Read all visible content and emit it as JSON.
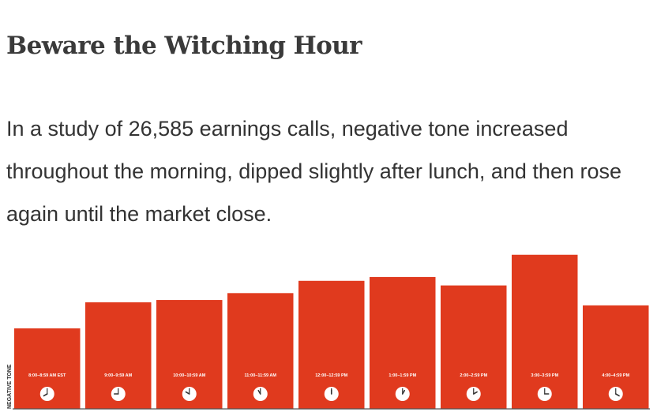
{
  "header": {
    "title": "Beware the Witching Hour",
    "subtitle": "In a study of 26,585 earnings calls, negative tone increased throughout the morning, dipped slightly after lunch, and then rose again until the market close."
  },
  "chart_data": {
    "type": "bar",
    "title": "Beware the Witching Hour",
    "ylabel": "NEGATIVE TONE",
    "xlabel": "",
    "categories": [
      "8:00–8:59 AM EST",
      "9:00–9:59 AM",
      "10:00–10:59 AM",
      "11:00–11:59 AM",
      "12:00–12:59 PM",
      "1:00–1:59 PM",
      "2:00–2:59 PM",
      "3:00–3:59 PM",
      "4:00–4:59 PM"
    ],
    "clock_hours": [
      8,
      9,
      10,
      11,
      12,
      1,
      2,
      3,
      4
    ],
    "values": [
      105,
      139,
      142,
      151,
      167,
      172,
      161,
      201,
      135
    ],
    "ylim": [
      0,
      210
    ],
    "grid": false,
    "legend": "none",
    "colors": {
      "bar": "#e03a1e",
      "label": "#ffffff",
      "baseline": "#555555",
      "clock_face": "#ffffff",
      "clock_hand": "#333333"
    }
  }
}
